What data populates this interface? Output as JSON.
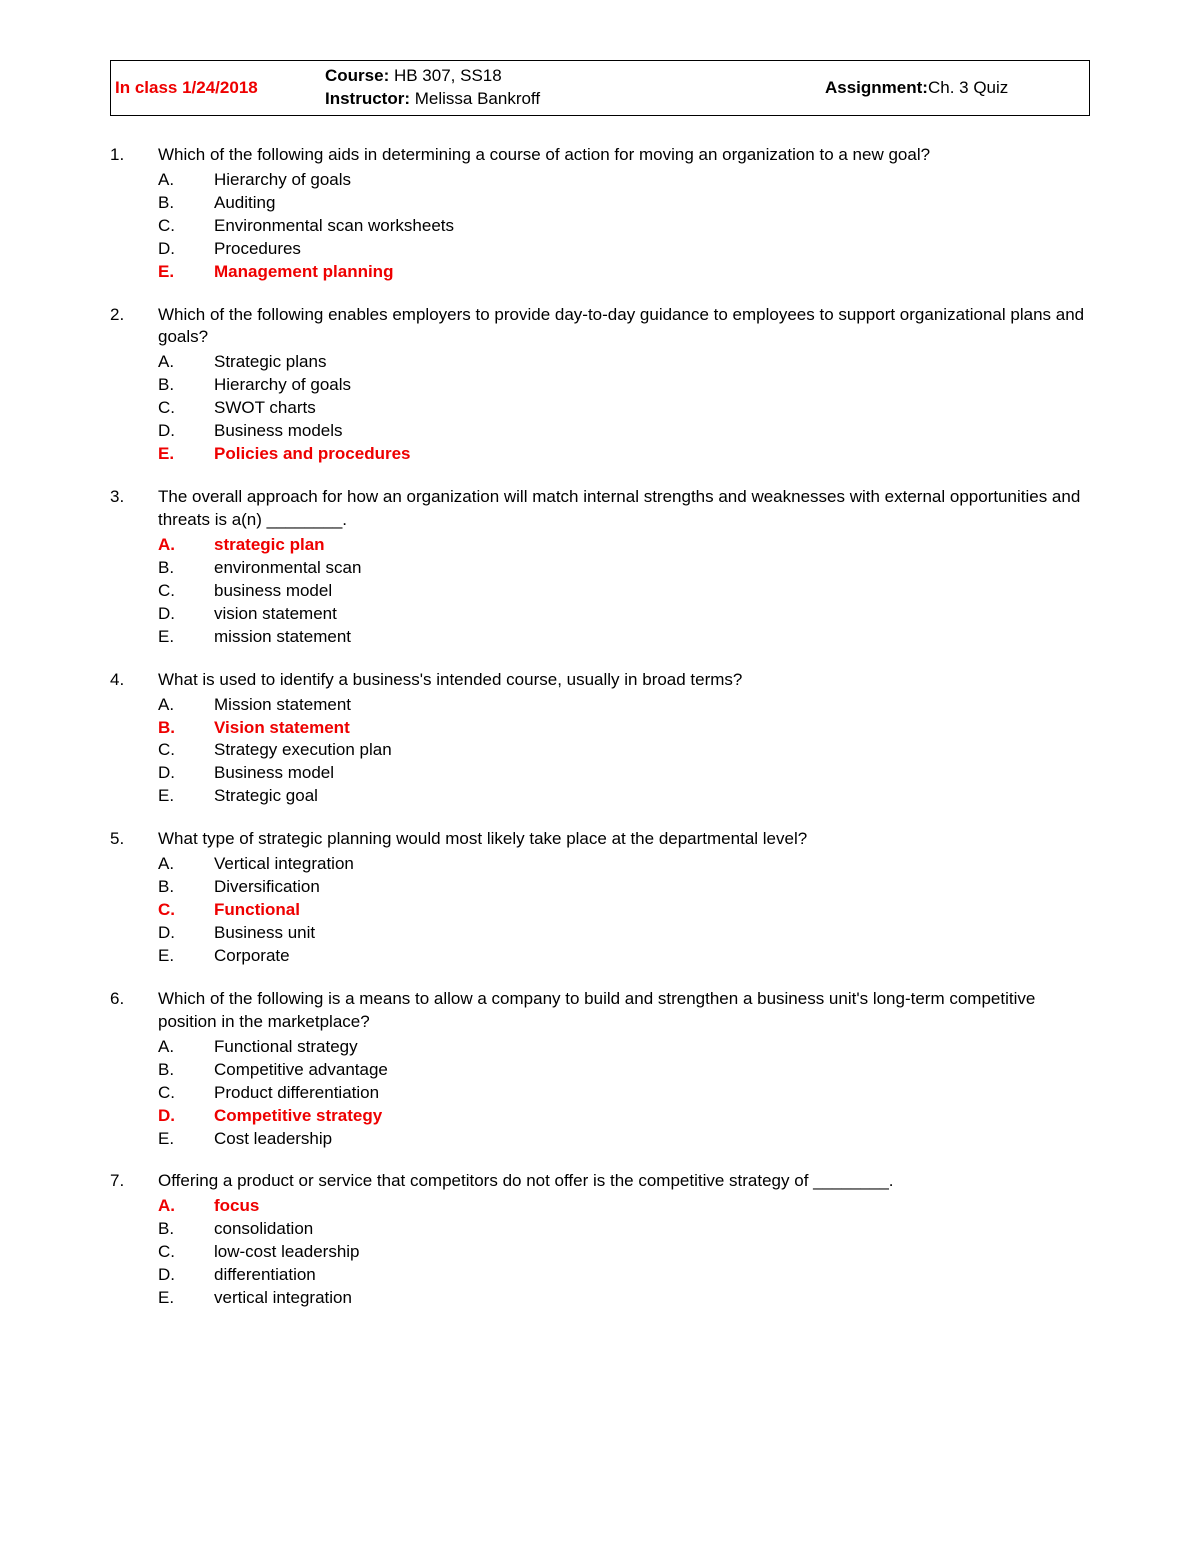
{
  "header": {
    "in_class_label": "In class 1/24/2018",
    "course_label": "Course:",
    "course_value": " HB 307, SS18",
    "instructor_label": "Instructor:",
    "instructor_value": " Melissa Bankroff",
    "assignment_label": "Assignment:",
    "assignment_value": " Ch. 3 Quiz"
  },
  "colors": {
    "highlight": "#ee0000",
    "text": "#000000",
    "background": "#ffffff",
    "border": "#000000"
  },
  "questions": [
    {
      "number": "1.",
      "text": "Which of the following aids in determining a course of action for moving an organization to a new goal?",
      "options": [
        {
          "letter": "A.",
          "text": "Hierarchy of goals",
          "highlight": false
        },
        {
          "letter": "B.",
          "text": "Auditing",
          "highlight": false
        },
        {
          "letter": "C.",
          "text": "Environmental scan worksheets",
          "highlight": false
        },
        {
          "letter": "D.",
          "text": "Procedures",
          "highlight": false
        },
        {
          "letter": "E.",
          "text": "Management planning",
          "highlight": true
        }
      ]
    },
    {
      "number": "2.",
      "text": "Which of the following enables employers to provide day-to-day guidance to employees to support organizational plans and goals?",
      "options": [
        {
          "letter": "A.",
          "text": "Strategic plans",
          "highlight": false
        },
        {
          "letter": "B.",
          "text": "Hierarchy of goals",
          "highlight": false
        },
        {
          "letter": "C.",
          "text": "SWOT charts",
          "highlight": false
        },
        {
          "letter": "D.",
          "text": "Business models",
          "highlight": false
        },
        {
          "letter": "E.",
          "text": "Policies and procedures",
          "highlight": true
        }
      ]
    },
    {
      "number": "3.",
      "text": "The overall approach for how an organization will match internal strengths and weaknesses with external opportunities and threats is a(n) ________.",
      "options": [
        {
          "letter": "A.",
          "text": "strategic plan",
          "highlight": true
        },
        {
          "letter": "B.",
          "text": "environmental scan",
          "highlight": false
        },
        {
          "letter": "C.",
          "text": "business model",
          "highlight": false
        },
        {
          "letter": "D.",
          "text": "vision statement",
          "highlight": false
        },
        {
          "letter": "E.",
          "text": "mission statement",
          "highlight": false
        }
      ]
    },
    {
      "number": "4.",
      "text": "What is used to identify a business's intended course, usually in broad terms?",
      "options": [
        {
          "letter": "A.",
          "text": "Mission statement",
          "highlight": false
        },
        {
          "letter": "B.",
          "text": "Vision statement",
          "highlight": true
        },
        {
          "letter": "C.",
          "text": "Strategy execution plan",
          "highlight": false
        },
        {
          "letter": "D.",
          "text": "Business model",
          "highlight": false
        },
        {
          "letter": "E.",
          "text": "Strategic goal",
          "highlight": false
        }
      ]
    },
    {
      "number": "5.",
      "text": "What type of strategic planning would most likely take place at the departmental level?",
      "options": [
        {
          "letter": "A.",
          "text": "Vertical integration",
          "highlight": false
        },
        {
          "letter": "B.",
          "text": "Diversification",
          "highlight": false
        },
        {
          "letter": "C.",
          "text": "Functional",
          "highlight": true
        },
        {
          "letter": "D.",
          "text": "Business unit",
          "highlight": false
        },
        {
          "letter": "E.",
          "text": "Corporate",
          "highlight": false
        }
      ]
    },
    {
      "number": "6.",
      "text": "Which of the following is a means to allow a company to build and strengthen a business unit's long-term competitive position in the marketplace?",
      "options": [
        {
          "letter": "A.",
          "text": "Functional strategy",
          "highlight": false
        },
        {
          "letter": "B.",
          "text": "Competitive advantage",
          "highlight": false
        },
        {
          "letter": "C.",
          "text": "Product differentiation",
          "highlight": false
        },
        {
          "letter": "D.",
          "text": "Competitive strategy",
          "highlight": true
        },
        {
          "letter": "E.",
          "text": "Cost leadership",
          "highlight": false
        }
      ]
    },
    {
      "number": "7.",
      "text": "Offering a product or service that competitors do not offer is the competitive strategy of ________.",
      "options": [
        {
          "letter": "A.",
          "text": "focus",
          "highlight": true
        },
        {
          "letter": "B.",
          "text": "consolidation",
          "highlight": false
        },
        {
          "letter": "C.",
          "text": "low-cost leadership",
          "highlight": false
        },
        {
          "letter": "D.",
          "text": "differentiation",
          "highlight": false
        },
        {
          "letter": "E.",
          "text": "vertical integration",
          "highlight": false
        }
      ]
    }
  ]
}
